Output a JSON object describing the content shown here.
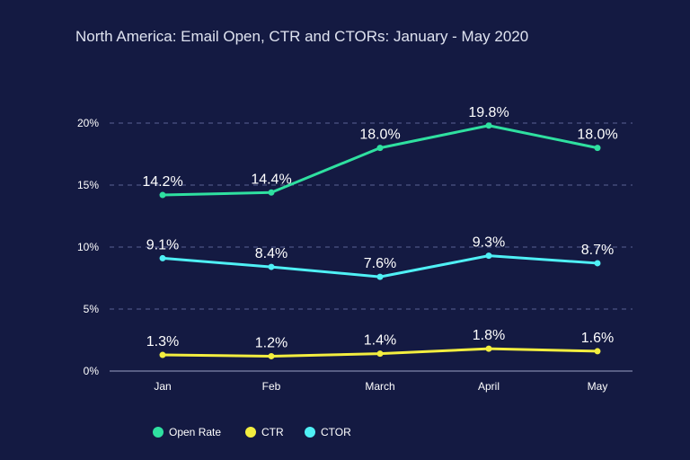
{
  "chart_data": {
    "type": "line",
    "title": "North America: Email Open, CTR and CTORs: January - May 2020",
    "categories": [
      "Jan",
      "Feb",
      "March",
      "April",
      "May"
    ],
    "ylim": [
      0,
      20
    ],
    "yticks": [
      0,
      5,
      10,
      15,
      20
    ],
    "ytick_labels": [
      "0%",
      "5%",
      "10%",
      "15%",
      "20%"
    ],
    "grid": true,
    "legend": "bottom-left",
    "xlabel": "",
    "ylabel": "",
    "series": [
      {
        "name": "Open Rate",
        "color": "#2fe0a0",
        "values": [
          14.2,
          14.4,
          18.0,
          19.8,
          18.0
        ],
        "labels": [
          "14.2%",
          "14.4%",
          "18.0%",
          "19.8%",
          "18.0%"
        ]
      },
      {
        "name": "CTR",
        "color": "#f3ee3f",
        "values": [
          1.3,
          1.2,
          1.4,
          1.8,
          1.6
        ],
        "labels": [
          "1.3%",
          "1.2%",
          "1.4%",
          "1.8%",
          "1.6%"
        ]
      },
      {
        "name": "CTOR",
        "color": "#4ff0f5",
        "values": [
          9.1,
          8.4,
          7.6,
          9.3,
          8.7
        ],
        "labels": [
          "9.1%",
          "8.4%",
          "7.6%",
          "9.3%",
          "8.7%"
        ]
      }
    ]
  }
}
